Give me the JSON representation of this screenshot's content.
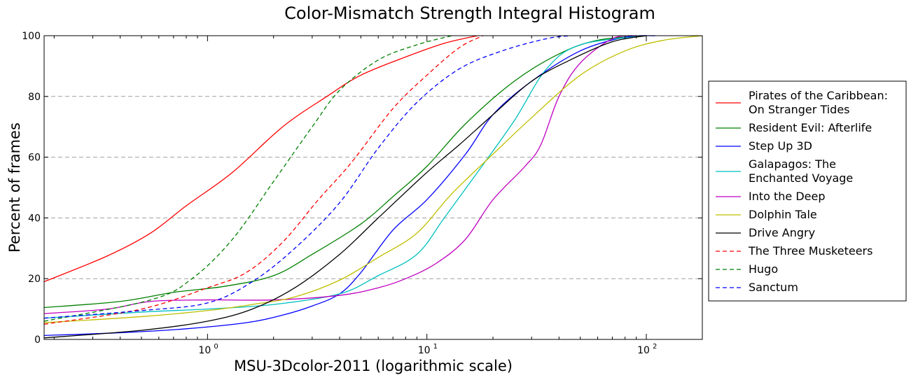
{
  "chart_data": {
    "type": "line",
    "title": "Color-Mismatch Strength Integral Histogram",
    "xlabel": "MSU-3Dcolor-2011 (logarithmic scale)",
    "ylabel": "Percent of frames",
    "x_scale": "log",
    "xlim": [
      0.18,
      180
    ],
    "ylim": [
      0,
      100
    ],
    "x_ticks": [
      1,
      10,
      100
    ],
    "x_tick_labels": [
      {
        "base": "10",
        "exp": "0"
      },
      {
        "base": "10",
        "exp": "1"
      },
      {
        "base": "10",
        "exp": "2"
      }
    ],
    "y_ticks": [
      "0",
      "20",
      "40",
      "60",
      "80",
      "100"
    ],
    "y_tick_values": [
      0,
      20,
      40,
      60,
      80,
      100
    ],
    "grid": "horizontal dashed",
    "legend_position": "right outside",
    "series": [
      {
        "name": "Pirates of the Caribbean: On Stranger Tides",
        "legend_lines": [
          "Pirates of the Caribbean:",
          "On Stranger Tides"
        ],
        "color": "#ff0000",
        "style": "solid",
        "points": [
          [
            0.18,
            19
          ],
          [
            0.35,
            27.5
          ],
          [
            0.55,
            35
          ],
          [
            0.8,
            44
          ],
          [
            1.3,
            55
          ],
          [
            2.2,
            70
          ],
          [
            3.5,
            80
          ],
          [
            5,
            87
          ],
          [
            8,
            93
          ],
          [
            12,
            97.5
          ],
          [
            17,
            100
          ]
        ]
      },
      {
        "name": "Resident Evil: Afterlife",
        "legend_lines": [
          "Resident Evil: Afterlife"
        ],
        "color": "#008000",
        "style": "solid",
        "points": [
          [
            0.18,
            10.5
          ],
          [
            0.4,
            12.5
          ],
          [
            0.7,
            15.5
          ],
          [
            1.2,
            17.5
          ],
          [
            2,
            21
          ],
          [
            3,
            28
          ],
          [
            5,
            38
          ],
          [
            7,
            47
          ],
          [
            10,
            57
          ],
          [
            15,
            71
          ],
          [
            25,
            85
          ],
          [
            40,
            94
          ],
          [
            60,
            98.5
          ],
          [
            100,
            100
          ]
        ]
      },
      {
        "name": "Step Up 3D",
        "legend_lines": [
          "Step Up 3D"
        ],
        "color": "#0000ff",
        "style": "solid",
        "points": [
          [
            0.18,
            1.3
          ],
          [
            0.4,
            2.2
          ],
          [
            0.8,
            3.5
          ],
          [
            1.5,
            5.5
          ],
          [
            2.2,
            8
          ],
          [
            3,
            11
          ],
          [
            4,
            15
          ],
          [
            5,
            22
          ],
          [
            7,
            36
          ],
          [
            10,
            46
          ],
          [
            15,
            61
          ],
          [
            20,
            74
          ],
          [
            30,
            85
          ],
          [
            50,
            95
          ],
          [
            80,
            99.5
          ],
          [
            110,
            100
          ]
        ]
      },
      {
        "name": "Galapagos: The Enchanted Voyage",
        "legend_lines": [
          "Galapagos: The",
          "Enchanted Voyage"
        ],
        "color": "#00bfbf",
        "style": "solid",
        "points": [
          [
            0.18,
            7
          ],
          [
            0.5,
            9
          ],
          [
            1,
            10
          ],
          [
            2,
            11.5
          ],
          [
            4,
            15
          ],
          [
            6,
            21
          ],
          [
            9,
            28
          ],
          [
            12,
            40
          ],
          [
            17,
            55
          ],
          [
            25,
            72
          ],
          [
            35,
            89
          ],
          [
            50,
            97
          ],
          [
            100,
            100
          ]
        ]
      },
      {
        "name": "Into the Deep",
        "legend_lines": [
          "Into the Deep"
        ],
        "color": "#bf00bf",
        "style": "solid",
        "points": [
          [
            0.18,
            8.5
          ],
          [
            0.35,
            10
          ],
          [
            0.55,
            12.5
          ],
          [
            1,
            13
          ],
          [
            2,
            13
          ],
          [
            4,
            14.5
          ],
          [
            6,
            17
          ],
          [
            8,
            20
          ],
          [
            11,
            25
          ],
          [
            15,
            33
          ],
          [
            20,
            46
          ],
          [
            28,
            57
          ],
          [
            33,
            64
          ],
          [
            40,
            80
          ],
          [
            50,
            91
          ],
          [
            70,
            99
          ],
          [
            90,
            100
          ]
        ]
      },
      {
        "name": "Dolphin Tale",
        "legend_lines": [
          "Dolphin Tale"
        ],
        "color": "#bfbf00",
        "style": "solid",
        "points": [
          [
            0.18,
            5.5
          ],
          [
            0.5,
            7.5
          ],
          [
            1,
            9.5
          ],
          [
            1.6,
            11.5
          ],
          [
            2.5,
            14
          ],
          [
            4,
            19.5
          ],
          [
            6,
            27
          ],
          [
            9,
            35
          ],
          [
            13,
            48
          ],
          [
            20,
            61
          ],
          [
            30,
            73
          ],
          [
            50,
            87
          ],
          [
            80,
            95
          ],
          [
            120,
            98.5
          ],
          [
            180,
            100
          ]
        ]
      },
      {
        "name": "Drive Angry",
        "legend_lines": [
          "Drive Angry"
        ],
        "color": "#000000",
        "style": "solid",
        "points": [
          [
            0.18,
            0.5
          ],
          [
            0.5,
            3
          ],
          [
            1,
            6
          ],
          [
            1.6,
            10
          ],
          [
            2.5,
            17
          ],
          [
            4,
            28
          ],
          [
            6,
            40
          ],
          [
            10,
            55
          ],
          [
            14,
            64
          ],
          [
            20,
            74
          ],
          [
            30,
            85
          ],
          [
            45,
            92
          ],
          [
            70,
            98
          ],
          [
            100,
            100
          ]
        ]
      },
      {
        "name": "The Three Musketeers",
        "legend_lines": [
          "The Three Musketeers"
        ],
        "color": "#ff0000",
        "style": "dashed",
        "points": [
          [
            0.18,
            5
          ],
          [
            0.5,
            10
          ],
          [
            1,
            17
          ],
          [
            1.5,
            22
          ],
          [
            2.2,
            32
          ],
          [
            3.2,
            46
          ],
          [
            4.5,
            58
          ],
          [
            7,
            76
          ],
          [
            10,
            87
          ],
          [
            14,
            96
          ],
          [
            18,
            100
          ]
        ]
      },
      {
        "name": "Hugo",
        "legend_lines": [
          "Hugo"
        ],
        "color": "#008000",
        "style": "dashed",
        "points": [
          [
            0.18,
            6
          ],
          [
            0.55,
            13
          ],
          [
            0.85,
            20
          ],
          [
            1.3,
            33
          ],
          [
            2,
            52
          ],
          [
            3,
            70
          ],
          [
            4,
            82
          ],
          [
            6,
            92
          ],
          [
            9,
            97
          ],
          [
            13,
            100
          ]
        ]
      },
      {
        "name": "Sanctum",
        "legend_lines": [
          "Sanctum"
        ],
        "color": "#0000ff",
        "style": "dashed",
        "points": [
          [
            0.18,
            7
          ],
          [
            0.5,
            9.5
          ],
          [
            1,
            12
          ],
          [
            1.6,
            19
          ],
          [
            2.5,
            30
          ],
          [
            4,
            45
          ],
          [
            6,
            63
          ],
          [
            9,
            78
          ],
          [
            14,
            89
          ],
          [
            22,
            95
          ],
          [
            35,
            99
          ],
          [
            45,
            100
          ]
        ]
      }
    ]
  }
}
